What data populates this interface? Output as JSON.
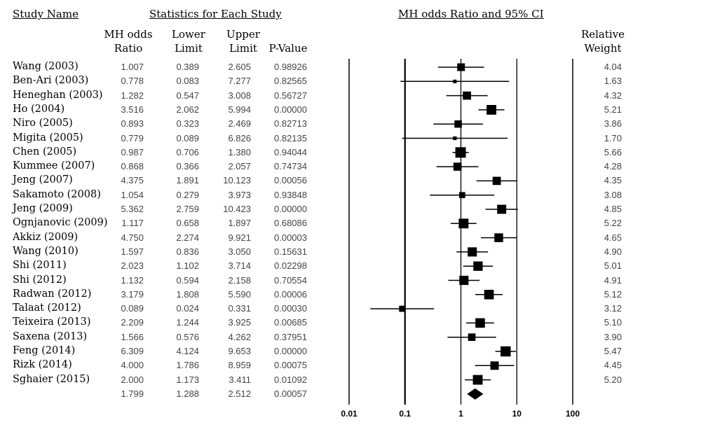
{
  "headers": {
    "study_name": "Study Name",
    "statistics": "Statistics for Each Study",
    "plot_title": "MH odds Ratio and 95% CI"
  },
  "columns": {
    "or_1": "MH odds",
    "or_2": "Ratio",
    "lower_1": "Lower",
    "lower_2": "Limit",
    "upper_1": "Upper",
    "upper_2": "Limit",
    "pvalue": "P-Value",
    "weight_1": "Relative",
    "weight_2": "Weight"
  },
  "chart_data": {
    "type": "forest",
    "xscale": "log",
    "xlim": [
      0.01,
      100
    ],
    "xticks": [
      "0.01",
      "0.1",
      "1",
      "10",
      "100"
    ],
    "rows": [
      {
        "study": "Wang (2003)",
        "or": "1.007",
        "lower": "0.389",
        "upper": "2.605",
        "p": "0.98926",
        "weight": "4.04"
      },
      {
        "study": "Ben-Ari (2003)",
        "or": "0.778",
        "lower": "0.083",
        "upper": "7.277",
        "p": "0.82565",
        "weight": "1.63"
      },
      {
        "study": "Heneghan (2003)",
        "or": "1.282",
        "lower": "0.547",
        "upper": "3.008",
        "p": "0.56727",
        "weight": "4.32"
      },
      {
        "study": "Ho (2004)",
        "or": "3.516",
        "lower": "2.062",
        "upper": "5.994",
        "p": "0.00000",
        "weight": "5.21"
      },
      {
        "study": "Niro (2005)",
        "or": "0.893",
        "lower": "0.323",
        "upper": "2.469",
        "p": "0.82713",
        "weight": "3.86"
      },
      {
        "study": "Migita (2005)",
        "or": "0.779",
        "lower": "0.089",
        "upper": "6.826",
        "p": "0.82135",
        "weight": "1.70"
      },
      {
        "study": "Chen (2005)",
        "or": "0.987",
        "lower": "0.706",
        "upper": "1.380",
        "p": "0.94044",
        "weight": "5.66"
      },
      {
        "study": "Kummee (2007)",
        "or": "0.868",
        "lower": "0.366",
        "upper": "2.057",
        "p": "0.74734",
        "weight": "4.28"
      },
      {
        "study": "Jeng (2007)",
        "or": "4.375",
        "lower": "1.891",
        "upper": "10.123",
        "p": "0.00056",
        "weight": "4.35"
      },
      {
        "study": "Sakamoto (2008)",
        "or": "1.054",
        "lower": "0.279",
        "upper": "3.973",
        "p": "0.93848",
        "weight": "3.08"
      },
      {
        "study": "Jeng (2009)",
        "or": "5.362",
        "lower": "2.759",
        "upper": "10.423",
        "p": "0.00000",
        "weight": "4.85"
      },
      {
        "study": "Ognjanovic (2009)",
        "or": "1.117",
        "lower": "0.658",
        "upper": "1.897",
        "p": "0.68086",
        "weight": "5.22"
      },
      {
        "study": "Akkiz (2009)",
        "or": "4.750",
        "lower": "2.274",
        "upper": "9.921",
        "p": "0.00003",
        "weight": "4.65"
      },
      {
        "study": "Wang (2010)",
        "or": "1.597",
        "lower": "0.836",
        "upper": "3.050",
        "p": "0.15631",
        "weight": "4.90"
      },
      {
        "study": "Shi (2011)",
        "or": "2.023",
        "lower": "1.102",
        "upper": "3.714",
        "p": "0.02298",
        "weight": "5.01"
      },
      {
        "study": "Shi (2012)",
        "or": "1.132",
        "lower": "0.594",
        "upper": "2.158",
        "p": "0.70554",
        "weight": "4.91"
      },
      {
        "study": "Radwan (2012)",
        "or": "3.179",
        "lower": "1.808",
        "upper": "5.590",
        "p": "0.00006",
        "weight": "5.12"
      },
      {
        "study": "Talaat (2012)",
        "or": "0.089",
        "lower": "0.024",
        "upper": "0.331",
        "p": "0.00030",
        "weight": "3.12"
      },
      {
        "study": "Teixeira (2013)",
        "or": "2.209",
        "lower": "1.244",
        "upper": "3.925",
        "p": "0.00685",
        "weight": "5.10"
      },
      {
        "study": "Saxena (2013)",
        "or": "1.566",
        "lower": "0.576",
        "upper": "4.262",
        "p": "0.37951",
        "weight": "3.90"
      },
      {
        "study": "Feng (2014)",
        "or": "6.309",
        "lower": "4.124",
        "upper": "9.653",
        "p": "0.00000",
        "weight": "5.47"
      },
      {
        "study": "Rizk (2014)",
        "or": "4.000",
        "lower": "1.786",
        "upper": "8.959",
        "p": "0.00075",
        "weight": "4.45"
      },
      {
        "study": "Sghaier (2015)",
        "or": "2.000",
        "lower": "1.173",
        "upper": "3.411",
        "p": "0.01092",
        "weight": "5.20"
      }
    ],
    "summary": {
      "or": "1.799",
      "lower": "1.288",
      "upper": "2.512",
      "p": "0.00057"
    }
  }
}
